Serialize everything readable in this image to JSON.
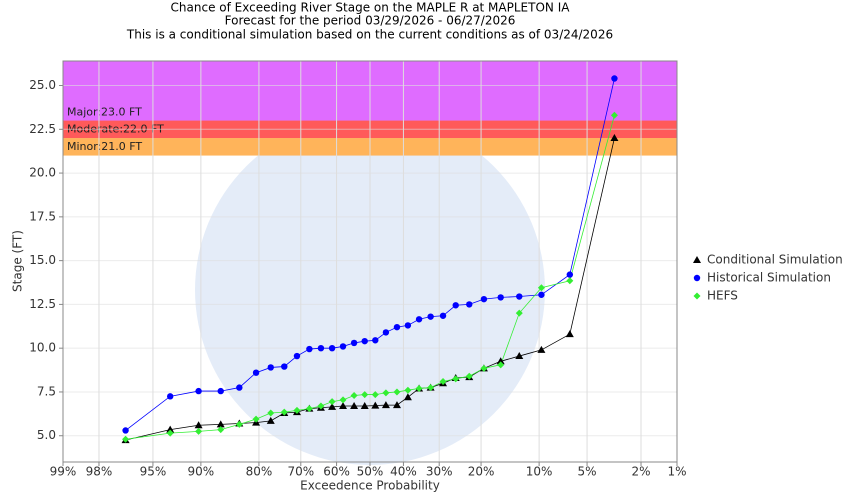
{
  "chart_data": {
    "type": "exceedance",
    "title": [
      "Chance of Exceeding River Stage on the MAPLE R at MAPLETON IA",
      "Forecast for the period 03/29/2026 - 06/27/2026",
      "This is a conditional simulation based on the current conditions as of 03/24/2026"
    ],
    "x_label": "Exceedence Probability",
    "y_label": "Stage (FT)",
    "x_scale": "normal-probability-reversed",
    "xlim": [
      99,
      1
    ],
    "xticks": [
      {
        "value": 99,
        "label": "99%"
      },
      {
        "value": 98,
        "label": "98%"
      },
      {
        "value": 95,
        "label": "95%"
      },
      {
        "value": 90,
        "label": "90%"
      },
      {
        "value": 80,
        "label": "80%"
      },
      {
        "value": 70,
        "label": "70%"
      },
      {
        "value": 60,
        "label": "60%"
      },
      {
        "value": 50,
        "label": "50%"
      },
      {
        "value": 40,
        "label": "40%"
      },
      {
        "value": 30,
        "label": "30%"
      },
      {
        "value": 20,
        "label": "20%"
      },
      {
        "value": 10,
        "label": "10%"
      },
      {
        "value": 5,
        "label": "5%"
      },
      {
        "value": 2,
        "label": "2%"
      },
      {
        "value": 1,
        "label": "1%"
      }
    ],
    "ylim": [
      3.5,
      26.4
    ],
    "yticks": [
      {
        "value": 5,
        "label": "5.0"
      },
      7.5,
      {
        "value": 10,
        "label": "10.0"
      },
      12.5,
      {
        "value": 15,
        "label": "15.0"
      },
      17.5,
      {
        "value": 20,
        "label": "20.0"
      },
      22.5,
      {
        "value": 25,
        "label": "25.0"
      }
    ],
    "grid": true,
    "bands": [
      {
        "label": "Minor:21.0 FT",
        "from": 21.0,
        "color": "#ffb45a"
      },
      {
        "label": "Moderate:22.0 FT",
        "from": 22.0,
        "color": "#ff5a5a"
      },
      {
        "label": "Major:23.0 FT",
        "from": 23.0,
        "color": "#df6cff"
      }
    ],
    "x": [
      96.8,
      93.5,
      90.3,
      87.1,
      83.9,
      80.6,
      77.4,
      74.2,
      71.0,
      67.7,
      64.5,
      61.3,
      58.1,
      54.8,
      51.6,
      48.4,
      45.2,
      41.9,
      38.7,
      35.5,
      32.3,
      29.0,
      25.8,
      22.6,
      19.4,
      16.1,
      12.9,
      9.7,
      6.5,
      3.2
    ],
    "series": [
      {
        "name": "Conditional Simulation",
        "color": "#000000",
        "marker": "triangle",
        "values": [
          4.75,
          5.35,
          5.6,
          5.65,
          5.7,
          5.75,
          5.85,
          6.3,
          6.35,
          6.55,
          6.6,
          6.65,
          6.7,
          6.7,
          6.7,
          6.72,
          6.75,
          6.75,
          7.2,
          7.7,
          7.75,
          8.0,
          8.3,
          8.35,
          8.85,
          9.25,
          9.55,
          9.9,
          10.8,
          22.0
        ]
      },
      {
        "name": "Historical Simulation",
        "color": "#0000ff",
        "marker": "circle",
        "values": [
          5.3,
          7.25,
          7.55,
          7.55,
          7.75,
          8.6,
          8.9,
          8.95,
          9.55,
          9.95,
          10.0,
          10.0,
          10.1,
          10.3,
          10.4,
          10.45,
          10.9,
          11.2,
          11.3,
          11.65,
          11.8,
          11.85,
          12.45,
          12.5,
          12.8,
          12.9,
          12.95,
          13.05,
          14.2,
          25.4
        ]
      },
      {
        "name": "HEFS",
        "color": "#33ee33",
        "marker": "diamond",
        "values": [
          4.8,
          5.15,
          5.25,
          5.35,
          5.65,
          5.95,
          6.3,
          6.35,
          6.45,
          6.55,
          6.7,
          6.95,
          7.05,
          7.3,
          7.35,
          7.35,
          7.45,
          7.5,
          7.6,
          7.7,
          7.75,
          8.1,
          8.25,
          8.4,
          8.85,
          9.05,
          12.0,
          13.45,
          13.85,
          23.3
        ]
      }
    ]
  }
}
